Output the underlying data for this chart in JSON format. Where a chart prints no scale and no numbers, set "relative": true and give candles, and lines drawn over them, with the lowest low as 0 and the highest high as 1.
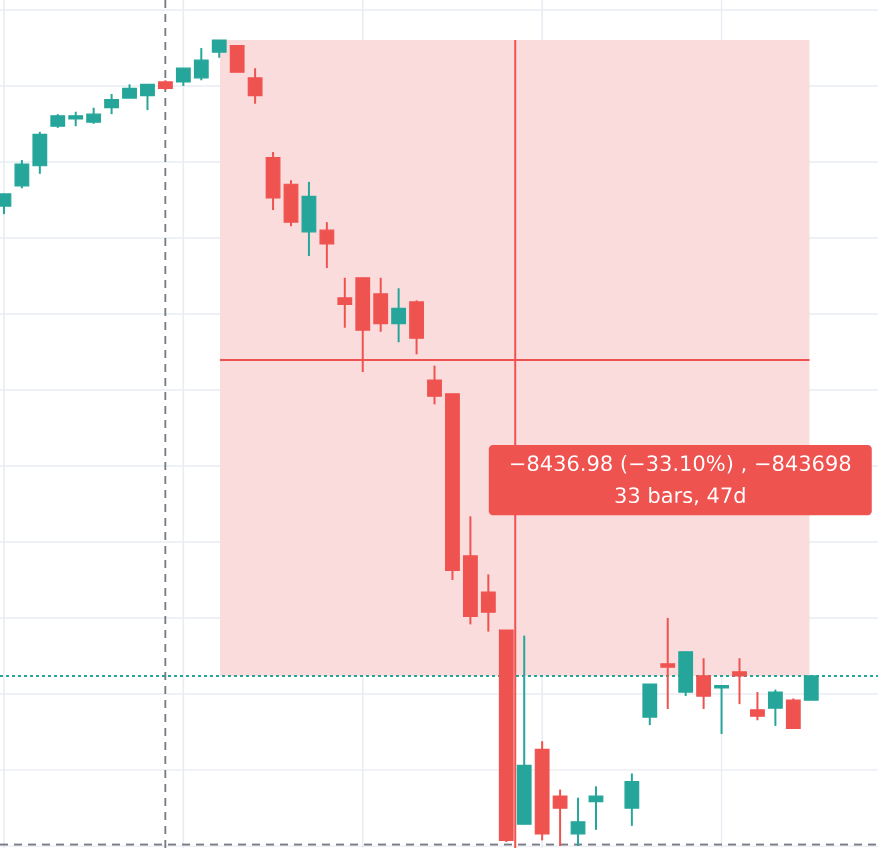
{
  "chart_data": {
    "type": "candlestick",
    "relative": true,
    "grid": true,
    "categories": [
      null,
      null,
      null,
      null,
      null,
      null,
      null,
      null,
      null,
      null,
      null,
      null,
      null,
      null,
      null,
      null,
      null,
      null,
      null,
      null,
      null,
      null,
      null,
      null,
      null,
      null,
      null,
      null,
      null,
      null,
      null,
      null,
      null,
      null,
      null,
      null,
      null,
      null,
      null,
      null,
      null,
      null,
      null,
      null,
      null,
      null
    ],
    "ohlc": [
      [
        0.794,
        0.809,
        0.784,
        0.809
      ],
      [
        0.819,
        0.851,
        0.816,
        0.846
      ],
      [
        0.844,
        0.886,
        0.834,
        0.883
      ],
      [
        0.893,
        0.908,
        0.891,
        0.906
      ],
      [
        0.902,
        0.911,
        0.893,
        0.906
      ],
      [
        0.898,
        0.916,
        0.896,
        0.908
      ],
      [
        0.916,
        0.933,
        0.908,
        0.926
      ],
      [
        0.928,
        0.945,
        0.928,
        0.94
      ],
      [
        0.931,
        0.945,
        0.913,
        0.945
      ],
      [
        0.948,
        0.95,
        0.938,
        0.94
      ],
      [
        0.948,
        0.965,
        0.943,
        0.965
      ],
      [
        0.953,
        0.99,
        0.95,
        0.975
      ],
      [
        0.985,
        1,
        0.978,
        1
      ],
      [
        0.993,
        0.993,
        0.96,
        0.96
      ],
      [
        0.953,
        0.965,
        0.921,
        0.931
      ],
      [
        0.854,
        0.861,
        0.789,
        0.804
      ],
      [
        0.821,
        0.826,
        0.769,
        0.774
      ],
      [
        0.762,
        0.824,
        0.732,
        0.806
      ],
      [
        0.764,
        0.774,
        0.717,
        0.747
      ],
      [
        0.68,
        0.705,
        0.643,
        0.672
      ],
      [
        0.705,
        0.705,
        0.588,
        0.64
      ],
      [
        0.685,
        0.705,
        0.638,
        0.648
      ],
      [
        0.648,
        0.692,
        0.625,
        0.667
      ],
      [
        0.675,
        0.677,
        0.61,
        0.63
      ],
      [
        0.578,
        0.596,
        0.548,
        0.558
      ],
      [
        0.561,
        0.561,
        0.33,
        0.342
      ],
      [
        0.36,
        0.409,
        0.275,
        0.285
      ],
      [
        0.315,
        0.337,
        0.266,
        0.29
      ],
      [
        0.268,
        0.268,
        0.005,
        0.007
      ],
      [
        0.027,
        0.261,
        0.027,
        0.1
      ],
      [
        0.12,
        0.13,
        0.007,
        0.015
      ],
      [
        0.062,
        0.07,
        0,
        0.047
      ],
      [
        0.015,
        0.06,
        0,
        0.03
      ],
      [
        0.055,
        0.074,
        0.02,
        0.062
      ],
      null,
      [
        0.047,
        0.09,
        0.025,
        0.08
      ],
      [
        0.16,
        0.201,
        0.15,
        0.201
      ],
      [
        0.226,
        0.283,
        0.17,
        0.222
      ],
      [
        0.191,
        0.241,
        0.186,
        0.241
      ],
      [
        0.211,
        0.233,
        0.17,
        0.186
      ],
      [
        0.196,
        0.199,
        0.139,
        0.199
      ],
      [
        0.216,
        0.233,
        0.176,
        0.211
      ],
      [
        0.169,
        0.191,
        0.156,
        0.161
      ],
      [
        0.171,
        0.194,
        0.149,
        0.191
      ],
      [
        0.181,
        0.183,
        0.146,
        0.146
      ],
      [
        0.181,
        0.211,
        0.181,
        0.211
      ]
    ],
    "colors": [
      "#26a69a",
      "#26a69a",
      "#26a69a",
      "#26a69a",
      "#26a69a",
      "#26a69a",
      "#26a69a",
      "#26a69a",
      "#26a69a",
      "#ef5350",
      "#26a69a",
      "#26a69a",
      "#26a69a",
      "#ef5350",
      "#ef5350",
      "#ef5350",
      "#ef5350",
      "#26a69a",
      "#ef5350",
      "#ef5350",
      "#ef5350",
      "#ef5350",
      "#26a69a",
      "#ef5350",
      "#ef5350",
      "#ef5350",
      "#ef5350",
      "#ef5350",
      "#ef5350",
      "#26a69a",
      "#ef5350",
      "#ef5350",
      "#26a69a",
      "#26a69a",
      null,
      "#26a69a",
      "#26a69a",
      "#ef5350",
      "#26a69a",
      "#ef5350",
      "#26a69a",
      "#ef5350",
      "#ef5350",
      "#26a69a",
      "#ef5350",
      "#26a69a"
    ],
    "bands": [
      {
        "axis": "y",
        "from": 0.211,
        "to": 1,
        "color": "#fbdcdd"
      }
    ],
    "ref_lines": [
      {
        "axis": "y",
        "value": 0.211,
        "color": "#26a69a",
        "line_style": "dotted"
      },
      {
        "axis": "y",
        "value": 0.002,
        "color": "#787b86",
        "line_style": "dashed"
      },
      {
        "axis": "y",
        "value": 0.603,
        "color": "#ef5350"
      }
    ],
    "annotations": [
      "−8436.98 (−33.10%) , −843698",
      "33 bars, 47d"
    ]
  }
}
